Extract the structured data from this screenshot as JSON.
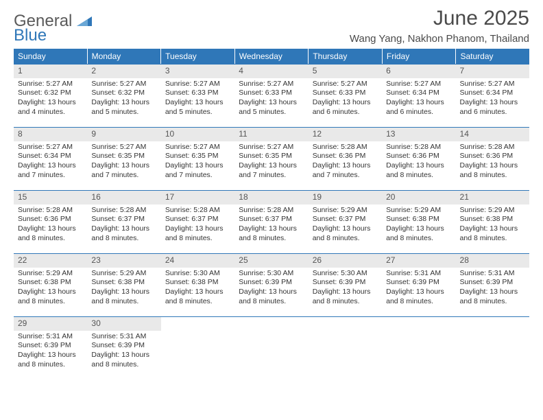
{
  "logo": {
    "word1": "General",
    "word2": "Blue"
  },
  "title": {
    "month": "June 2025",
    "location": "Wang Yang, Nakhon Phanom, Thailand"
  },
  "colors": {
    "header_bg": "#2f77b8",
    "daynum_bg": "#e9e9e9",
    "text": "#333333",
    "title_text": "#4a4a4a",
    "rule": "#2f77b8"
  },
  "fonts": {
    "title_size_pt": 30,
    "location_size_pt": 15,
    "weekday_size_pt": 12,
    "daynum_size_pt": 12,
    "body_size_pt": 10.5,
    "family": "Arial"
  },
  "weekdays": [
    "Sunday",
    "Monday",
    "Tuesday",
    "Wednesday",
    "Thursday",
    "Friday",
    "Saturday"
  ],
  "weeks": [
    [
      {
        "num": "1",
        "sunrise": "Sunrise: 5:27 AM",
        "sunset": "Sunset: 6:32 PM",
        "daylight": "Daylight: 13 hours and 4 minutes."
      },
      {
        "num": "2",
        "sunrise": "Sunrise: 5:27 AM",
        "sunset": "Sunset: 6:32 PM",
        "daylight": "Daylight: 13 hours and 5 minutes."
      },
      {
        "num": "3",
        "sunrise": "Sunrise: 5:27 AM",
        "sunset": "Sunset: 6:33 PM",
        "daylight": "Daylight: 13 hours and 5 minutes."
      },
      {
        "num": "4",
        "sunrise": "Sunrise: 5:27 AM",
        "sunset": "Sunset: 6:33 PM",
        "daylight": "Daylight: 13 hours and 5 minutes."
      },
      {
        "num": "5",
        "sunrise": "Sunrise: 5:27 AM",
        "sunset": "Sunset: 6:33 PM",
        "daylight": "Daylight: 13 hours and 6 minutes."
      },
      {
        "num": "6",
        "sunrise": "Sunrise: 5:27 AM",
        "sunset": "Sunset: 6:34 PM",
        "daylight": "Daylight: 13 hours and 6 minutes."
      },
      {
        "num": "7",
        "sunrise": "Sunrise: 5:27 AM",
        "sunset": "Sunset: 6:34 PM",
        "daylight": "Daylight: 13 hours and 6 minutes."
      }
    ],
    [
      {
        "num": "8",
        "sunrise": "Sunrise: 5:27 AM",
        "sunset": "Sunset: 6:34 PM",
        "daylight": "Daylight: 13 hours and 7 minutes."
      },
      {
        "num": "9",
        "sunrise": "Sunrise: 5:27 AM",
        "sunset": "Sunset: 6:35 PM",
        "daylight": "Daylight: 13 hours and 7 minutes."
      },
      {
        "num": "10",
        "sunrise": "Sunrise: 5:27 AM",
        "sunset": "Sunset: 6:35 PM",
        "daylight": "Daylight: 13 hours and 7 minutes."
      },
      {
        "num": "11",
        "sunrise": "Sunrise: 5:27 AM",
        "sunset": "Sunset: 6:35 PM",
        "daylight": "Daylight: 13 hours and 7 minutes."
      },
      {
        "num": "12",
        "sunrise": "Sunrise: 5:28 AM",
        "sunset": "Sunset: 6:36 PM",
        "daylight": "Daylight: 13 hours and 7 minutes."
      },
      {
        "num": "13",
        "sunrise": "Sunrise: 5:28 AM",
        "sunset": "Sunset: 6:36 PM",
        "daylight": "Daylight: 13 hours and 8 minutes."
      },
      {
        "num": "14",
        "sunrise": "Sunrise: 5:28 AM",
        "sunset": "Sunset: 6:36 PM",
        "daylight": "Daylight: 13 hours and 8 minutes."
      }
    ],
    [
      {
        "num": "15",
        "sunrise": "Sunrise: 5:28 AM",
        "sunset": "Sunset: 6:36 PM",
        "daylight": "Daylight: 13 hours and 8 minutes."
      },
      {
        "num": "16",
        "sunrise": "Sunrise: 5:28 AM",
        "sunset": "Sunset: 6:37 PM",
        "daylight": "Daylight: 13 hours and 8 minutes."
      },
      {
        "num": "17",
        "sunrise": "Sunrise: 5:28 AM",
        "sunset": "Sunset: 6:37 PM",
        "daylight": "Daylight: 13 hours and 8 minutes."
      },
      {
        "num": "18",
        "sunrise": "Sunrise: 5:28 AM",
        "sunset": "Sunset: 6:37 PM",
        "daylight": "Daylight: 13 hours and 8 minutes."
      },
      {
        "num": "19",
        "sunrise": "Sunrise: 5:29 AM",
        "sunset": "Sunset: 6:37 PM",
        "daylight": "Daylight: 13 hours and 8 minutes."
      },
      {
        "num": "20",
        "sunrise": "Sunrise: 5:29 AM",
        "sunset": "Sunset: 6:38 PM",
        "daylight": "Daylight: 13 hours and 8 minutes."
      },
      {
        "num": "21",
        "sunrise": "Sunrise: 5:29 AM",
        "sunset": "Sunset: 6:38 PM",
        "daylight": "Daylight: 13 hours and 8 minutes."
      }
    ],
    [
      {
        "num": "22",
        "sunrise": "Sunrise: 5:29 AM",
        "sunset": "Sunset: 6:38 PM",
        "daylight": "Daylight: 13 hours and 8 minutes."
      },
      {
        "num": "23",
        "sunrise": "Sunrise: 5:29 AM",
        "sunset": "Sunset: 6:38 PM",
        "daylight": "Daylight: 13 hours and 8 minutes."
      },
      {
        "num": "24",
        "sunrise": "Sunrise: 5:30 AM",
        "sunset": "Sunset: 6:38 PM",
        "daylight": "Daylight: 13 hours and 8 minutes."
      },
      {
        "num": "25",
        "sunrise": "Sunrise: 5:30 AM",
        "sunset": "Sunset: 6:39 PM",
        "daylight": "Daylight: 13 hours and 8 minutes."
      },
      {
        "num": "26",
        "sunrise": "Sunrise: 5:30 AM",
        "sunset": "Sunset: 6:39 PM",
        "daylight": "Daylight: 13 hours and 8 minutes."
      },
      {
        "num": "27",
        "sunrise": "Sunrise: 5:31 AM",
        "sunset": "Sunset: 6:39 PM",
        "daylight": "Daylight: 13 hours and 8 minutes."
      },
      {
        "num": "28",
        "sunrise": "Sunrise: 5:31 AM",
        "sunset": "Sunset: 6:39 PM",
        "daylight": "Daylight: 13 hours and 8 minutes."
      }
    ],
    [
      {
        "num": "29",
        "sunrise": "Sunrise: 5:31 AM",
        "sunset": "Sunset: 6:39 PM",
        "daylight": "Daylight: 13 hours and 8 minutes."
      },
      {
        "num": "30",
        "sunrise": "Sunrise: 5:31 AM",
        "sunset": "Sunset: 6:39 PM",
        "daylight": "Daylight: 13 hours and 8 minutes."
      },
      {
        "empty": true
      },
      {
        "empty": true
      },
      {
        "empty": true
      },
      {
        "empty": true
      },
      {
        "empty": true
      }
    ]
  ]
}
